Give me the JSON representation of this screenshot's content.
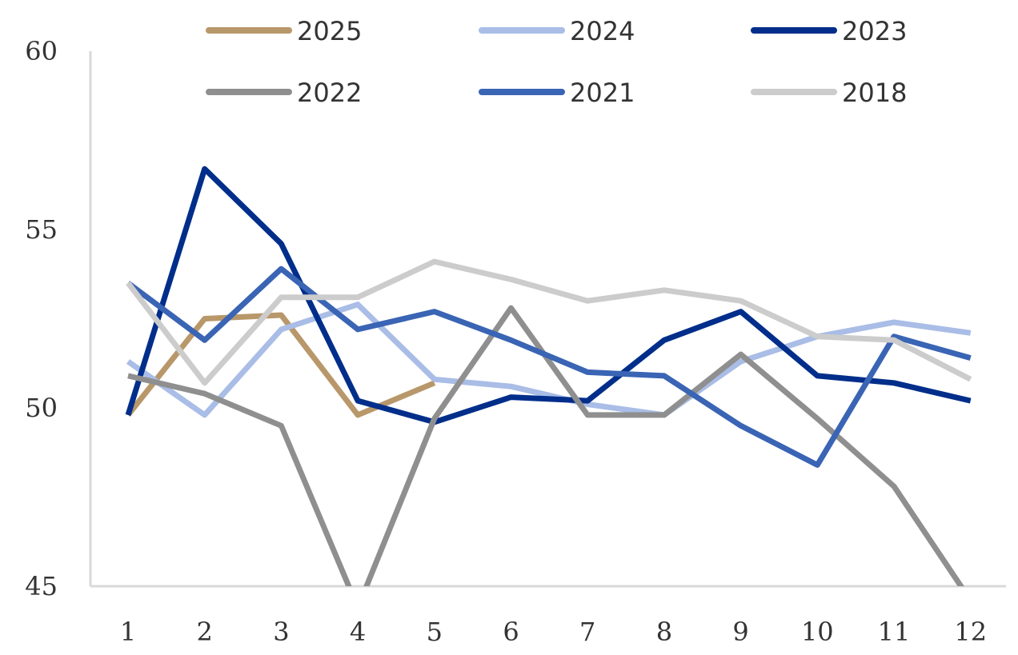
{
  "chart_data": {
    "type": "line",
    "title": "",
    "xlabel": "",
    "ylabel": "",
    "x": [
      1,
      2,
      3,
      4,
      5,
      6,
      7,
      8,
      9,
      10,
      11,
      12
    ],
    "x_tick_labels": [
      "1",
      "2",
      "3",
      "4",
      "5",
      "6",
      "7",
      "8",
      "9",
      "10",
      "11",
      "12"
    ],
    "ylim": [
      45,
      60
    ],
    "y_ticks": [
      45,
      50,
      55,
      60
    ],
    "y_tick_labels": [
      "45",
      "50",
      "55",
      "60"
    ],
    "grid": false,
    "legend_position": "top",
    "series": [
      {
        "name": "2025",
        "color": "#b8976a",
        "values": [
          49.8,
          52.5,
          52.6,
          49.8,
          50.7,
          null,
          null,
          null,
          null,
          null,
          null,
          null
        ]
      },
      {
        "name": "2024",
        "color": "#a9bde6",
        "values": [
          51.3,
          49.8,
          52.2,
          52.9,
          50.8,
          50.6,
          50.1,
          49.8,
          51.3,
          52.0,
          52.4,
          52.1
        ]
      },
      {
        "name": "2023",
        "color": "#002e8a",
        "values": [
          49.8,
          56.7,
          54.6,
          50.2,
          49.6,
          50.3,
          50.2,
          51.9,
          52.7,
          50.9,
          50.7,
          50.2
        ]
      },
      {
        "name": "2022",
        "color": "#8f8f8f",
        "values": [
          50.9,
          50.4,
          49.5,
          44.4,
          49.7,
          52.8,
          49.8,
          49.8,
          51.5,
          49.7,
          47.8,
          44.6
        ]
      },
      {
        "name": "2021",
        "color": "#3a64b4",
        "values": [
          53.5,
          51.9,
          53.9,
          52.2,
          52.7,
          51.9,
          51.0,
          50.9,
          49.5,
          48.4,
          52.0,
          51.4
        ]
      },
      {
        "name": "2018",
        "color": "#cccccc",
        "values": [
          53.5,
          50.7,
          53.1,
          53.1,
          54.1,
          53.6,
          53.0,
          53.3,
          53.0,
          52.0,
          51.9,
          50.8
        ]
      }
    ]
  }
}
